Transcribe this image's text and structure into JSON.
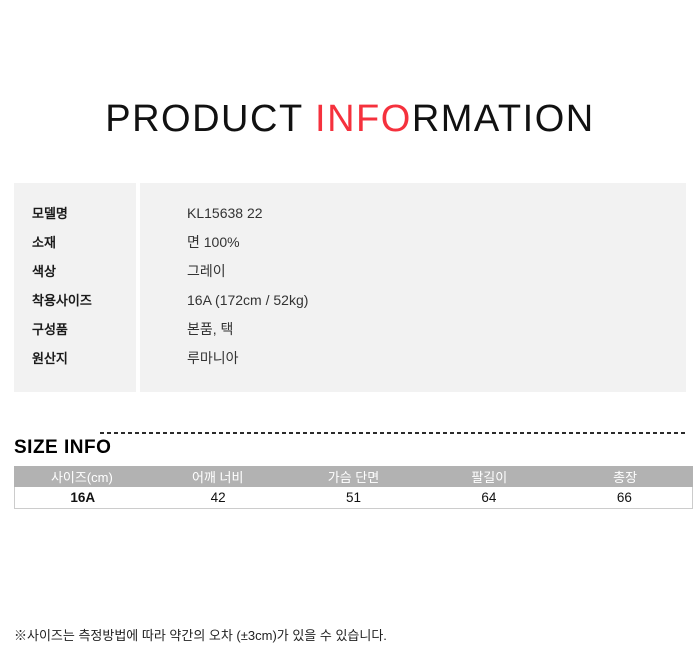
{
  "page": {
    "title": {
      "prefix": "PRODUCT ",
      "highlight": "INFO",
      "suffix": "RMATION"
    },
    "accent_color": "#f5313d",
    "panel_bg_color": "#f2f2f2",
    "table_header_bg_color": "#b2b2b2"
  },
  "product_info": {
    "rows": [
      {
        "label": "모델명",
        "value": "KL15638 22"
      },
      {
        "label": "소재",
        "value": "면 100%"
      },
      {
        "label": "색상",
        "value": "그레이"
      },
      {
        "label": "착용사이즈",
        "value": "16A (172cm / 52kg)"
      },
      {
        "label": "구성품",
        "value": "본품, 택"
      },
      {
        "label": "원산지",
        "value": "루마니아"
      }
    ]
  },
  "size_info": {
    "heading": "SIZE INFO",
    "table": {
      "headers": [
        "사이즈(cm)",
        "어깨 너비",
        "가슴 단면",
        "팔길이",
        "총장"
      ],
      "rows": [
        [
          "16A",
          "42",
          "51",
          "64",
          "66"
        ]
      ]
    },
    "note": "※사이즈는 측정방법에 따라 약간의 오차 (±3cm)가 있을 수 있습니다."
  }
}
